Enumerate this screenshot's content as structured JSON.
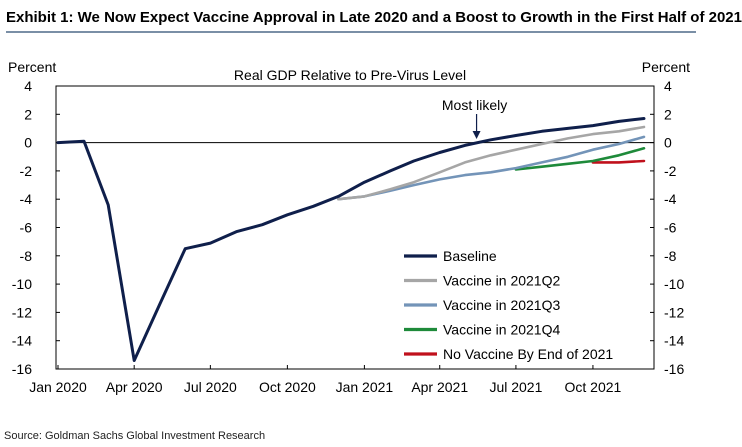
{
  "exhibit_title": "Exhibit 1: We Now Expect Vaccine Approval in Late 2020 and a Boost to Growth in the First Half of 2021",
  "source": "Source: Goldman Sachs Global Investment Research",
  "chart_data": {
    "type": "line",
    "title": "Real GDP Relative to Pre-Virus Level",
    "ylabel_left": "Percent",
    "ylabel_right": "Percent",
    "xlabel": "",
    "ylim": [
      -16,
      4
    ],
    "yticks": [
      4,
      2,
      0,
      -2,
      -4,
      -6,
      -8,
      -10,
      -12,
      -14,
      -16
    ],
    "xlim": [
      "2020-01",
      "2021-12"
    ],
    "x_tick_labels": [
      "Jan 2020",
      "Apr 2020",
      "Jul 2020",
      "Oct 2020",
      "Jan 2021",
      "Apr 2021",
      "Jul 2021",
      "Oct 2021"
    ],
    "x_tick_dates": [
      "2020-01",
      "2020-04",
      "2020-07",
      "2020-10",
      "2021-01",
      "2021-04",
      "2021-07",
      "2021-10"
    ],
    "zero_line": true,
    "grid": false,
    "legend_position": "lower-right",
    "annotation": {
      "text": "Most likely",
      "x": "2021-05-15",
      "y": -0.1
    },
    "series": [
      {
        "name": "Baseline",
        "color": "#0f1f4b",
        "points": [
          [
            "2020-01",
            0.0
          ],
          [
            "2020-02",
            0.1
          ],
          [
            "2020-03",
            -4.4
          ],
          [
            "2020-04",
            -15.4
          ],
          [
            "2020-05",
            -11.5
          ],
          [
            "2020-06",
            -7.5
          ],
          [
            "2020-07",
            -7.1
          ],
          [
            "2020-08",
            -6.3
          ],
          [
            "2020-09",
            -5.8
          ],
          [
            "2020-10",
            -5.1
          ],
          [
            "2020-11",
            -4.5
          ],
          [
            "2020-12",
            -3.8
          ],
          [
            "2021-01",
            -2.8
          ],
          [
            "2021-02",
            -2.0
          ],
          [
            "2021-03",
            -1.3
          ],
          [
            "2021-04",
            -0.7
          ],
          [
            "2021-05",
            -0.2
          ],
          [
            "2021-06",
            0.2
          ],
          [
            "2021-07",
            0.5
          ],
          [
            "2021-08",
            0.8
          ],
          [
            "2021-09",
            1.0
          ],
          [
            "2021-10",
            1.2
          ],
          [
            "2021-11",
            1.5
          ],
          [
            "2021-12",
            1.7
          ]
        ]
      },
      {
        "name": "Vaccine in 2021Q2",
        "color": "#a6a6a6",
        "points": [
          [
            "2020-12",
            -4.0
          ],
          [
            "2021-01",
            -3.8
          ],
          [
            "2021-02",
            -3.3
          ],
          [
            "2021-03",
            -2.8
          ],
          [
            "2021-04",
            -2.1
          ],
          [
            "2021-05",
            -1.4
          ],
          [
            "2021-06",
            -0.9
          ],
          [
            "2021-07",
            -0.5
          ],
          [
            "2021-08",
            -0.1
          ],
          [
            "2021-09",
            0.3
          ],
          [
            "2021-10",
            0.6
          ],
          [
            "2021-11",
            0.8
          ],
          [
            "2021-12",
            1.1
          ]
        ]
      },
      {
        "name": "Vaccine in 2021Q3",
        "color": "#7394b8",
        "points": [
          [
            "2020-12",
            -4.0
          ],
          [
            "2021-01",
            -3.8
          ],
          [
            "2021-02",
            -3.4
          ],
          [
            "2021-03",
            -3.0
          ],
          [
            "2021-04",
            -2.6
          ],
          [
            "2021-05",
            -2.3
          ],
          [
            "2021-06",
            -2.1
          ],
          [
            "2021-07",
            -1.8
          ],
          [
            "2021-08",
            -1.4
          ],
          [
            "2021-09",
            -1.0
          ],
          [
            "2021-10",
            -0.5
          ],
          [
            "2021-11",
            -0.1
          ],
          [
            "2021-12",
            0.4
          ]
        ]
      },
      {
        "name": "Vaccine in 2021Q4",
        "color": "#1e8a3a",
        "points": [
          [
            "2021-07",
            -1.9
          ],
          [
            "2021-08",
            -1.7
          ],
          [
            "2021-09",
            -1.5
          ],
          [
            "2021-10",
            -1.3
          ],
          [
            "2021-11",
            -0.9
          ],
          [
            "2021-12",
            -0.4
          ]
        ]
      },
      {
        "name": "No Vaccine By End of 2021",
        "color": "#c0101c",
        "points": [
          [
            "2021-10",
            -1.4
          ],
          [
            "2021-11",
            -1.4
          ],
          [
            "2021-12",
            -1.3
          ]
        ]
      }
    ]
  }
}
